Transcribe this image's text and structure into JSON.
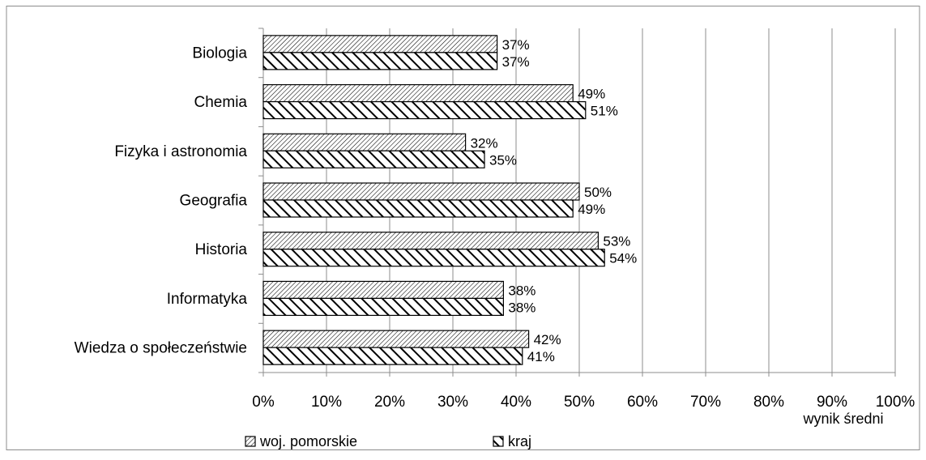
{
  "chart_data": {
    "type": "bar",
    "orientation": "horizontal",
    "categories": [
      "Biologia",
      "Chemia",
      "Fizyka i astronomia",
      "Geografia",
      "Historia",
      "Informatyka",
      "Wiedza o społeczeństwie"
    ],
    "series": [
      {
        "name": "woj. pomorskie",
        "values": [
          37,
          49,
          32,
          50,
          53,
          38,
          42
        ],
        "value_labels": [
          "37%",
          "49%",
          "32%",
          "50%",
          "53%",
          "38%",
          "42%"
        ],
        "pattern": "fine-diagonal-hatch"
      },
      {
        "name": "kraj",
        "values": [
          37,
          51,
          35,
          49,
          54,
          38,
          41
        ],
        "value_labels": [
          "37%",
          "51%",
          "35%",
          "49%",
          "54%",
          "38%",
          "41%"
        ],
        "pattern": "bold-diagonal-hatch"
      }
    ],
    "xlim": [
      0,
      100
    ],
    "x_ticks": [
      "0%",
      "10%",
      "20%",
      "30%",
      "40%",
      "50%",
      "60%",
      "70%",
      "80%",
      "90%",
      "100%"
    ],
    "xlabel": "wynik średni",
    "ylabel": "",
    "grid": true,
    "legend_position": "bottom-left",
    "colors": {
      "bar_stroke": "#000000",
      "grid": "#8c8c8c",
      "frame": "#8c8c8c",
      "background": "#ffffff"
    }
  }
}
